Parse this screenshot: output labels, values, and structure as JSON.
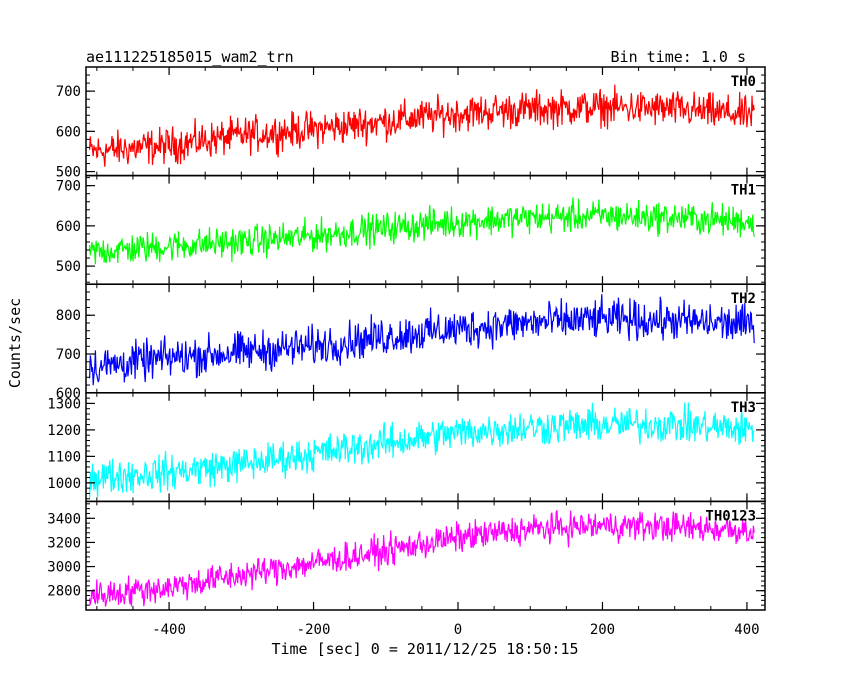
{
  "header": {
    "title": "ae111225185015_wam2_trn",
    "bin_time": "Bin time: 1.0 s"
  },
  "chart_data": {
    "type": "line",
    "x_range": [
      -515,
      425
    ],
    "x_ticks": [
      -400,
      -200,
      0,
      200,
      400
    ],
    "xlabel": "Time [sec] 0 = 2011/12/25 18:50:15",
    "ylabel": "Counts/sec",
    "grid": false,
    "series": [
      {
        "name": "TH0",
        "color": "#ff0000",
        "ylim": [
          490,
          760
        ],
        "y_ticks": [
          500,
          600,
          700
        ],
        "x": [
          -510,
          -400,
          -300,
          -200,
          -100,
          0,
          100,
          200,
          300,
          410
        ],
        "trend": [
          550,
          565,
          590,
          605,
          625,
          645,
          655,
          660,
          655,
          640
        ],
        "noise_amplitude": 40
      },
      {
        "name": "TH1",
        "color": "#00ff00",
        "ylim": [
          455,
          725
        ],
        "y_ticks": [
          500,
          600,
          700
        ],
        "x": [
          -510,
          -400,
          -300,
          -200,
          -100,
          0,
          100,
          200,
          300,
          410
        ],
        "trend": [
          535,
          550,
          560,
          575,
          595,
          610,
          620,
          625,
          620,
          610
        ],
        "noise_amplitude": 35
      },
      {
        "name": "TH2",
        "color": "#0000ff",
        "ylim": [
          600,
          880
        ],
        "y_ticks": [
          600,
          700,
          800
        ],
        "x": [
          -510,
          -400,
          -300,
          -200,
          -100,
          0,
          100,
          200,
          300,
          410
        ],
        "trend": [
          665,
          690,
          705,
          720,
          745,
          765,
          780,
          790,
          785,
          775
        ],
        "noise_amplitude": 45
      },
      {
        "name": "TH3",
        "color": "#00ffff",
        "ylim": [
          930,
          1340
        ],
        "y_ticks": [
          1000,
          1100,
          1200,
          1300
        ],
        "x": [
          -510,
          -400,
          -300,
          -200,
          -100,
          0,
          100,
          200,
          300,
          410
        ],
        "trend": [
          1020,
          1040,
          1070,
          1110,
          1150,
          1190,
          1210,
          1220,
          1220,
          1200
        ],
        "noise_amplitude": 60
      },
      {
        "name": "TH0123",
        "color": "#ff00ff",
        "ylim": [
          2640,
          3540
        ],
        "y_ticks": [
          2800,
          3000,
          3200,
          3400
        ],
        "x": [
          -510,
          -400,
          -300,
          -200,
          -100,
          0,
          100,
          200,
          300,
          410
        ],
        "trend": [
          2760,
          2830,
          2930,
          3030,
          3130,
          3240,
          3310,
          3340,
          3330,
          3300
        ],
        "noise_amplitude": 110
      }
    ]
  }
}
